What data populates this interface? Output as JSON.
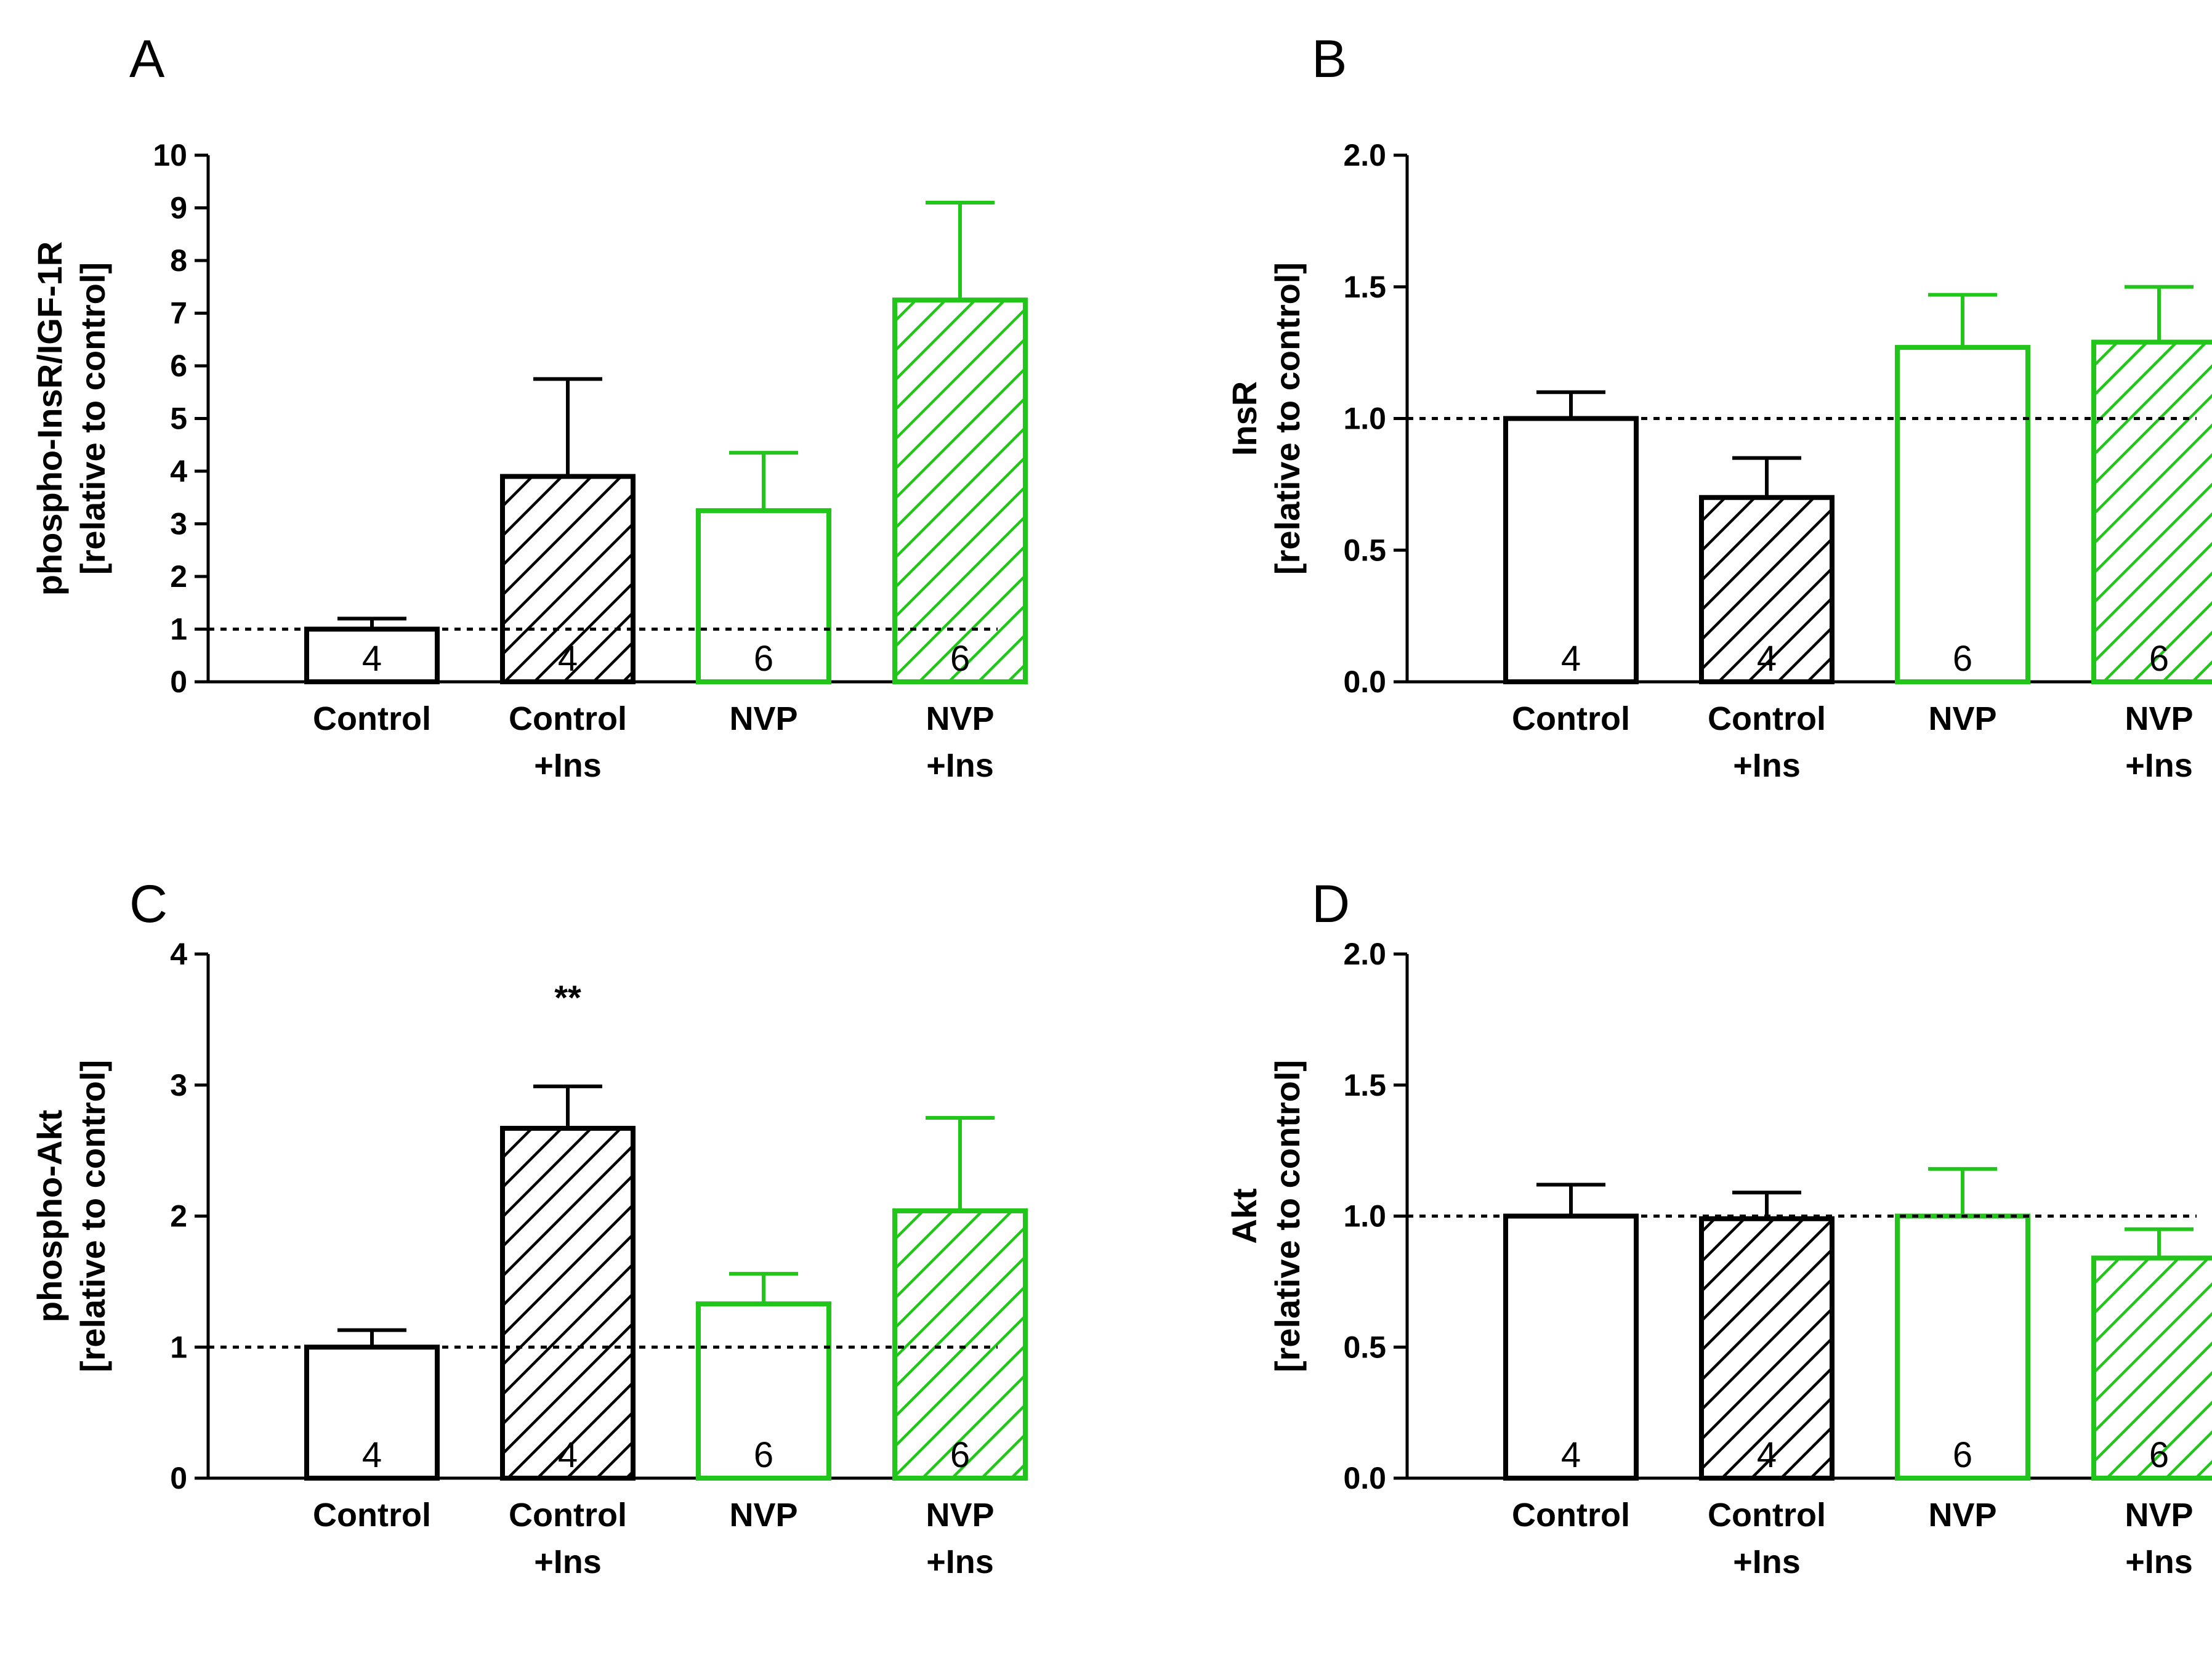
{
  "colors": {
    "black": "#000000",
    "green": "#22c51a",
    "background": "#ffffff"
  },
  "chart_data": [
    {
      "panel": "A",
      "type": "bar",
      "ylabel_lines": [
        "phospho-InsR/IGF-1R",
        "[relative to control]"
      ],
      "ylim": [
        0,
        10
      ],
      "yticks": [
        0,
        1,
        2,
        3,
        4,
        5,
        6,
        7,
        8,
        9,
        10
      ],
      "ytick_labels": [
        "0",
        "1",
        "2",
        "3",
        "4",
        "5",
        "6",
        "7",
        "8",
        "9",
        "10"
      ],
      "reference_line": 1,
      "categories": [
        [
          "Control"
        ],
        [
          "Control",
          "+Ins"
        ],
        [
          "NVP"
        ],
        [
          "NVP",
          "+Ins"
        ]
      ],
      "values": [
        1.0,
        3.9,
        3.25,
        7.25
      ],
      "errors": [
        0.2,
        1.85,
        1.1,
        1.85
      ],
      "n": [
        "4",
        "4",
        "6",
        "6"
      ],
      "bar_colors": [
        "black",
        "black",
        "green",
        "green"
      ],
      "hatched": [
        false,
        true,
        false,
        true
      ],
      "significance": [
        "",
        "",
        "",
        ""
      ]
    },
    {
      "panel": "B",
      "type": "bar",
      "ylabel_lines": [
        "InsR",
        "[relative to control]"
      ],
      "ylim": [
        0,
        2
      ],
      "yticks": [
        0,
        0.5,
        1,
        1.5,
        2
      ],
      "ytick_labels": [
        "0.0",
        "0.5",
        "1.0",
        "1.5",
        "2.0"
      ],
      "reference_line": 1,
      "categories": [
        [
          "Control"
        ],
        [
          "Control",
          "+Ins"
        ],
        [
          "NVP"
        ],
        [
          "NVP",
          "+Ins"
        ]
      ],
      "values": [
        1.0,
        0.7,
        1.27,
        1.29
      ],
      "errors": [
        0.1,
        0.15,
        0.2,
        0.21
      ],
      "n": [
        "4",
        "4",
        "6",
        "6"
      ],
      "bar_colors": [
        "black",
        "black",
        "green",
        "green"
      ],
      "hatched": [
        false,
        true,
        false,
        true
      ],
      "significance": [
        "",
        "",
        "",
        ""
      ]
    },
    {
      "panel": "C",
      "type": "bar",
      "ylabel_lines": [
        "phospho-Akt",
        "[relative to control]"
      ],
      "ylim": [
        0,
        4
      ],
      "yticks": [
        0,
        1,
        2,
        3,
        4
      ],
      "ytick_labels": [
        "0",
        "1",
        "2",
        "3",
        "4"
      ],
      "reference_line": 1,
      "categories": [
        [
          "Control"
        ],
        [
          "Control",
          "+Ins"
        ],
        [
          "NVP"
        ],
        [
          "NVP",
          "+Ins"
        ]
      ],
      "values": [
        1.0,
        2.67,
        1.33,
        2.04
      ],
      "errors": [
        0.13,
        0.32,
        0.23,
        0.71
      ],
      "n": [
        "4",
        "4",
        "6",
        "6"
      ],
      "bar_colors": [
        "black",
        "black",
        "green",
        "green"
      ],
      "hatched": [
        false,
        true,
        false,
        true
      ],
      "significance": [
        "",
        "**",
        "",
        ""
      ]
    },
    {
      "panel": "D",
      "type": "bar",
      "ylabel_lines": [
        "Akt",
        "[relative to control]"
      ],
      "ylim": [
        0,
        2
      ],
      "yticks": [
        0,
        0.5,
        1,
        1.5,
        2
      ],
      "ytick_labels": [
        "0.0",
        "0.5",
        "1.0",
        "1.5",
        "2.0"
      ],
      "reference_line": 1,
      "categories": [
        [
          "Control"
        ],
        [
          "Control",
          "+Ins"
        ],
        [
          "NVP"
        ],
        [
          "NVP",
          "+Ins"
        ]
      ],
      "values": [
        1.0,
        0.99,
        1.0,
        0.84
      ],
      "errors": [
        0.12,
        0.1,
        0.18,
        0.11
      ],
      "n": [
        "4",
        "4",
        "6",
        "6"
      ],
      "bar_colors": [
        "black",
        "black",
        "green",
        "green"
      ],
      "hatched": [
        false,
        true,
        false,
        true
      ],
      "significance": [
        "",
        "",
        "",
        ""
      ]
    }
  ]
}
